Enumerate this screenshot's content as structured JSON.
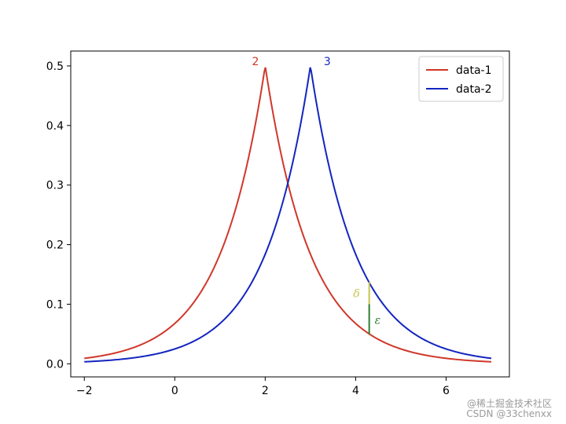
{
  "chart_data": {
    "type": "line",
    "xlim": [
      -2.3,
      7.4
    ],
    "ylim": [
      -0.022,
      0.525
    ],
    "xticks": [
      -2,
      0,
      2,
      4,
      6
    ],
    "yticks": [
      0.0,
      0.1,
      0.2,
      0.3,
      0.4,
      0.5
    ],
    "grid": false,
    "legend_position": "top-right",
    "series": [
      {
        "name": "data-1",
        "color": "#d0372b",
        "x_range": [
          -2,
          7
        ],
        "peak_x": 2,
        "peak_y": 0.5,
        "decay": 1,
        "peak_label": "2"
      },
      {
        "name": "data-2",
        "color": "#1325bf",
        "x_range": [
          -2,
          7
        ],
        "peak_x": 3,
        "peak_y": 0.5,
        "decay": 1,
        "peak_label": "3"
      }
    ],
    "annotations": {
      "x": 4.3,
      "delta": {
        "label": "δ",
        "y_from": 0.1,
        "y_to": 0.137,
        "color": "#c9c24a"
      },
      "epsilon": {
        "label": "ε",
        "y_from": 0.05,
        "y_to": 0.1,
        "color": "#2e7d32"
      }
    }
  },
  "watermark": {
    "line1": "@稀土掘金技术社区",
    "line2": "CSDN @33chenxx"
  }
}
